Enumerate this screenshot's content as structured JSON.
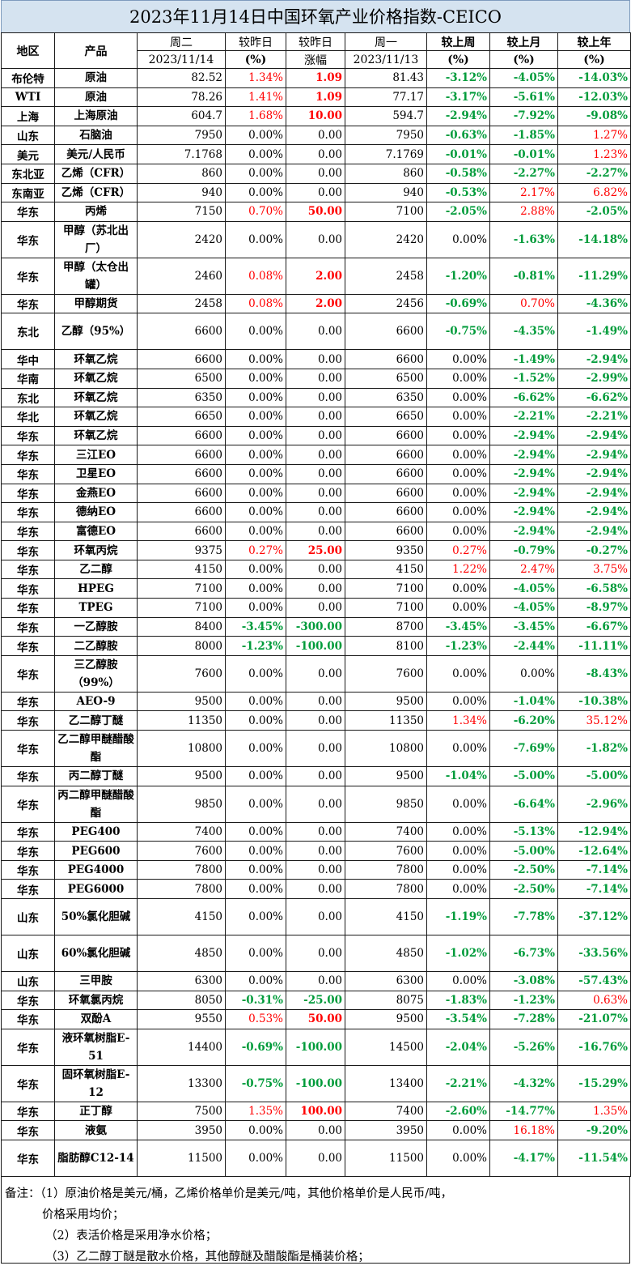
{
  "title": "2023年11月14日中国环氧产业价格指数-CEICO",
  "header": {
    "region": "地区",
    "product": "产品",
    "tue": "周二",
    "tue_date": "2023/11/14",
    "chg_pct_label": "较昨日",
    "chg_pct_unit": "(%)",
    "chg_amt_label": "较昨日",
    "chg_amt_unit": "涨幅",
    "mon": "周一",
    "mon_date": "2023/11/13",
    "week_label": "较上周",
    "week_unit": "(%)",
    "month_label": "较上月",
    "month_unit": "(%)",
    "year_label": "较上年",
    "year_unit": "(%)"
  },
  "rows": [
    {
      "region": "布伦特",
      "product": "原油",
      "tue": "82.52",
      "d_pct": "1.34%",
      "d_amt": "1.09",
      "mon": "81.43",
      "week": "-3.12%",
      "month": "-4.05%",
      "year": "-14.03%"
    },
    {
      "region": "WTI",
      "product": "原油",
      "tue": "78.26",
      "d_pct": "1.41%",
      "d_amt": "1.09",
      "mon": "77.17",
      "week": "-3.17%",
      "month": "-5.61%",
      "year": "-12.03%"
    },
    {
      "region": "上海",
      "product": "上海原油",
      "tue": "604.7",
      "d_pct": "1.68%",
      "d_amt": "10.00",
      "mon": "594.7",
      "week": "-2.94%",
      "month": "-7.92%",
      "year": "-9.08%"
    },
    {
      "region": "山东",
      "product": "石脑油",
      "tue": "7950",
      "d_pct": "0.00%",
      "d_amt": "0.00",
      "mon": "7950",
      "week": "-0.63%",
      "month": "-1.85%",
      "year": "1.27%"
    },
    {
      "region": "美元",
      "product": "美元/人民币",
      "tue": "7.1768",
      "d_pct": "0.00%",
      "d_amt": "0.00",
      "mon": "7.1769",
      "week": "-0.01%",
      "month": "-0.01%",
      "year": "1.23%"
    },
    {
      "region": "东北亚",
      "product": "乙烯（CFR）",
      "tue": "860",
      "d_pct": "0.00%",
      "d_amt": "0.00",
      "mon": "860",
      "week": "-0.58%",
      "month": "-2.27%",
      "year": "-2.27%"
    },
    {
      "region": "东南亚",
      "product": "乙烯（CFR）",
      "tue": "940",
      "d_pct": "0.00%",
      "d_amt": "0.00",
      "mon": "940",
      "week": "-0.53%",
      "month": "2.17%",
      "year": "6.82%"
    },
    {
      "region": "华东",
      "product": "丙烯",
      "tue": "7150",
      "d_pct": "0.70%",
      "d_amt": "50.00",
      "mon": "7100",
      "week": "-2.05%",
      "month": "2.88%",
      "year": "-2.05%"
    },
    {
      "region": "华东",
      "product": "甲醇（苏北出厂）",
      "tue": "2420",
      "d_pct": "0.00%",
      "d_amt": "0.00",
      "mon": "2420",
      "week": "0.00%",
      "month": "-1.63%",
      "year": "-14.18%",
      "tall": true
    },
    {
      "region": "华东",
      "product": "甲醇（太仓出罐）",
      "tue": "2460",
      "d_pct": "0.08%",
      "d_amt": "2.00",
      "mon": "2458",
      "week": "-1.20%",
      "month": "-0.81%",
      "year": "-11.29%",
      "tall": true
    },
    {
      "region": "华东",
      "product": "甲醇期货",
      "tue": "2458",
      "d_pct": "0.08%",
      "d_amt": "2.00",
      "mon": "2456",
      "week": "-0.69%",
      "month": "0.70%",
      "year": "-4.36%"
    },
    {
      "region": "东北",
      "product": "乙醇（95%）",
      "tue": "6600",
      "d_pct": "0.00%",
      "d_amt": "0.00",
      "mon": "6600",
      "week": "-0.75%",
      "month": "-4.35%",
      "year": "-1.49%",
      "tall": true
    },
    {
      "region": "华中",
      "product": "环氧乙烷",
      "tue": "6600",
      "d_pct": "0.00%",
      "d_amt": "0.00",
      "mon": "6600",
      "week": "0.00%",
      "month": "-1.49%",
      "year": "-2.94%"
    },
    {
      "region": "华南",
      "product": "环氧乙烷",
      "tue": "6500",
      "d_pct": "0.00%",
      "d_amt": "0.00",
      "mon": "6500",
      "week": "0.00%",
      "month": "-1.52%",
      "year": "-2.99%"
    },
    {
      "region": "东北",
      "product": "环氧乙烷",
      "tue": "6350",
      "d_pct": "0.00%",
      "d_amt": "0.00",
      "mon": "6350",
      "week": "0.00%",
      "month": "-6.62%",
      "year": "-6.62%"
    },
    {
      "region": "华北",
      "product": "环氧乙烷",
      "tue": "6650",
      "d_pct": "0.00%",
      "d_amt": "0.00",
      "mon": "6650",
      "week": "0.00%",
      "month": "-2.21%",
      "year": "-2.21%"
    },
    {
      "region": "华东",
      "product": "环氧乙烷",
      "tue": "6600",
      "d_pct": "0.00%",
      "d_amt": "0.00",
      "mon": "6600",
      "week": "0.00%",
      "month": "-2.94%",
      "year": "-2.94%"
    },
    {
      "region": "华东",
      "product": "三江EO",
      "tue": "6600",
      "d_pct": "0.00%",
      "d_amt": "0.00",
      "mon": "6600",
      "week": "0.00%",
      "month": "-2.94%",
      "year": "-2.94%"
    },
    {
      "region": "华东",
      "product": "卫星EO",
      "tue": "6600",
      "d_pct": "0.00%",
      "d_amt": "0.00",
      "mon": "6600",
      "week": "0.00%",
      "month": "-2.94%",
      "year": "-2.94%"
    },
    {
      "region": "华东",
      "product": "金燕EO",
      "tue": "6600",
      "d_pct": "0.00%",
      "d_amt": "0.00",
      "mon": "6600",
      "week": "0.00%",
      "month": "-2.94%",
      "year": "-2.94%"
    },
    {
      "region": "华东",
      "product": "德纳EO",
      "tue": "6600",
      "d_pct": "0.00%",
      "d_amt": "0.00",
      "mon": "6600",
      "week": "0.00%",
      "month": "-2.94%",
      "year": "-2.94%"
    },
    {
      "region": "华东",
      "product": "富德EO",
      "tue": "6600",
      "d_pct": "0.00%",
      "d_amt": "0.00",
      "mon": "6600",
      "week": "0.00%",
      "month": "-2.94%",
      "year": "-2.94%"
    },
    {
      "region": "华东",
      "product": "环氧丙烷",
      "tue": "9375",
      "d_pct": "0.27%",
      "d_amt": "25.00",
      "mon": "9350",
      "week": "0.27%",
      "month": "-0.79%",
      "year": "-0.27%"
    },
    {
      "region": "华东",
      "product": "乙二醇",
      "tue": "4150",
      "d_pct": "0.00%",
      "d_amt": "0.00",
      "mon": "4150",
      "week": "1.22%",
      "month": "2.47%",
      "year": "3.75%"
    },
    {
      "region": "华东",
      "product": "HPEG",
      "tue": "7100",
      "d_pct": "0.00%",
      "d_amt": "0.00",
      "mon": "7100",
      "week": "0.00%",
      "month": "-4.05%",
      "year": "-6.58%"
    },
    {
      "region": "华东",
      "product": "TPEG",
      "tue": "7100",
      "d_pct": "0.00%",
      "d_amt": "0.00",
      "mon": "7100",
      "week": "0.00%",
      "month": "-4.05%",
      "year": "-8.97%"
    },
    {
      "region": "华东",
      "product": "一乙醇胺",
      "tue": "8400",
      "d_pct": "-3.45%",
      "d_amt": "-300.00",
      "mon": "8700",
      "week": "-3.45%",
      "month": "-3.45%",
      "year": "-6.67%"
    },
    {
      "region": "华东",
      "product": "二乙醇胺",
      "tue": "8000",
      "d_pct": "-1.23%",
      "d_amt": "-100.00",
      "mon": "8100",
      "week": "-1.23%",
      "month": "-2.44%",
      "year": "-11.11%"
    },
    {
      "region": "华东",
      "product": "三乙醇胺（99%）",
      "tue": "7600",
      "d_pct": "0.00%",
      "d_amt": "0.00",
      "mon": "7600",
      "week": "0.00%",
      "month": "0.00%",
      "year": "-8.43%",
      "tall": true
    },
    {
      "region": "华东",
      "product": "AEO-9",
      "tue": "9500",
      "d_pct": "0.00%",
      "d_amt": "0.00",
      "mon": "9500",
      "week": "0.00%",
      "month": "-1.04%",
      "year": "-10.38%"
    },
    {
      "region": "华东",
      "product": "乙二醇丁醚",
      "tue": "11350",
      "d_pct": "0.00%",
      "d_amt": "0.00",
      "mon": "11350",
      "week": "1.34%",
      "month": "-6.20%",
      "year": "35.12%"
    },
    {
      "region": "华东",
      "product": "乙二醇甲醚醋酸酯",
      "tue": "10800",
      "d_pct": "0.00%",
      "d_amt": "0.00",
      "mon": "10800",
      "week": "0.00%",
      "month": "-7.69%",
      "year": "-1.82%",
      "tall": true
    },
    {
      "region": "华东",
      "product": "丙二醇丁醚",
      "tue": "9500",
      "d_pct": "0.00%",
      "d_amt": "0.00",
      "mon": "9500",
      "week": "-1.04%",
      "month": "-5.00%",
      "year": "-5.00%"
    },
    {
      "region": "华东",
      "product": "丙二醇甲醚醋酸酯",
      "tue": "9850",
      "d_pct": "0.00%",
      "d_amt": "0.00",
      "mon": "9850",
      "week": "0.00%",
      "month": "-6.64%",
      "year": "-2.96%",
      "tall": true
    },
    {
      "region": "华东",
      "product": "PEG400",
      "tue": "7400",
      "d_pct": "0.00%",
      "d_amt": "0.00",
      "mon": "7400",
      "week": "0.00%",
      "month": "-5.13%",
      "year": "-12.94%"
    },
    {
      "region": "华东",
      "product": "PEG600",
      "tue": "7600",
      "d_pct": "0.00%",
      "d_amt": "0.00",
      "mon": "7600",
      "week": "0.00%",
      "month": "-5.00%",
      "year": "-12.64%"
    },
    {
      "region": "华东",
      "product": "PEG4000",
      "tue": "7800",
      "d_pct": "0.00%",
      "d_amt": "0.00",
      "mon": "7800",
      "week": "0.00%",
      "month": "-2.50%",
      "year": "-7.14%"
    },
    {
      "region": "华东",
      "product": "PEG6000",
      "tue": "7800",
      "d_pct": "0.00%",
      "d_amt": "0.00",
      "mon": "7800",
      "week": "0.00%",
      "month": "-2.50%",
      "year": "-7.14%"
    },
    {
      "region": "山东",
      "product": "50%氯化胆碱",
      "tue": "4150",
      "d_pct": "0.00%",
      "d_amt": "0.00",
      "mon": "4150",
      "week": "-1.19%",
      "month": "-7.78%",
      "year": "-37.12%",
      "tall": true
    },
    {
      "region": "山东",
      "product": "60%氯化胆碱",
      "tue": "4850",
      "d_pct": "0.00%",
      "d_amt": "0.00",
      "mon": "4850",
      "week": "-1.02%",
      "month": "-6.73%",
      "year": "-33.56%",
      "tall": true
    },
    {
      "region": "山东",
      "product": "三甲胺",
      "tue": "6300",
      "d_pct": "0.00%",
      "d_amt": "0.00",
      "mon": "6300",
      "week": "0.00%",
      "month": "-3.08%",
      "year": "-57.43%"
    },
    {
      "region": "华东",
      "product": "环氧氯丙烷",
      "tue": "8050",
      "d_pct": "-0.31%",
      "d_amt": "-25.00",
      "mon": "8075",
      "week": "-1.83%",
      "month": "-1.23%",
      "year": "0.63%"
    },
    {
      "region": "华东",
      "product": "双酚A",
      "tue": "9550",
      "d_pct": "0.53%",
      "d_amt": "50.00",
      "mon": "9500",
      "week": "-3.54%",
      "month": "-7.28%",
      "year": "-21.07%"
    },
    {
      "region": "华东",
      "product": "液环氧树脂E-51",
      "tue": "14400",
      "d_pct": "-0.69%",
      "d_amt": "-100.00",
      "mon": "14500",
      "week": "-2.04%",
      "month": "-5.26%",
      "year": "-16.76%",
      "tall": true
    },
    {
      "region": "华东",
      "product": "固环氧树脂E-12",
      "tue": "13300",
      "d_pct": "-0.75%",
      "d_amt": "-100.00",
      "mon": "13400",
      "week": "-2.21%",
      "month": "-4.32%",
      "year": "-15.29%",
      "tall": true
    },
    {
      "region": "华东",
      "product": "正丁醇",
      "tue": "7500",
      "d_pct": "1.35%",
      "d_amt": "100.00",
      "mon": "7400",
      "week": "-2.60%",
      "month": "-14.77%",
      "year": "1.35%"
    },
    {
      "region": "华东",
      "product": "液氨",
      "tue": "3950",
      "d_pct": "0.00%",
      "d_amt": "0.00",
      "mon": "3950",
      "week": "0.00%",
      "month": "16.18%",
      "year": "-9.20%"
    },
    {
      "region": "华东",
      "product": "脂肪醇C12-14",
      "tue": "11500",
      "d_pct": "0.00%",
      "d_amt": "0.00",
      "mon": "11500",
      "week": "0.00%",
      "month": "-4.17%",
      "year": "-11.54%",
      "tall": true
    }
  ],
  "notes": {
    "line1": "备注：（1）原油价格是美元/桶，乙烯价格单价是美元/吨，其他价格单价是人民币/吨，",
    "line2": "价格采用均价；",
    "line3": "（2）表活价格是采用净水价格；",
    "line4": "（3）乙二醇丁醚是散水价格，其他醇醚及醋酸酯是桶装价格；"
  },
  "colors": {
    "up": "#ff0000",
    "down": "#009b3a",
    "title_bg": "#d5e3f0"
  }
}
